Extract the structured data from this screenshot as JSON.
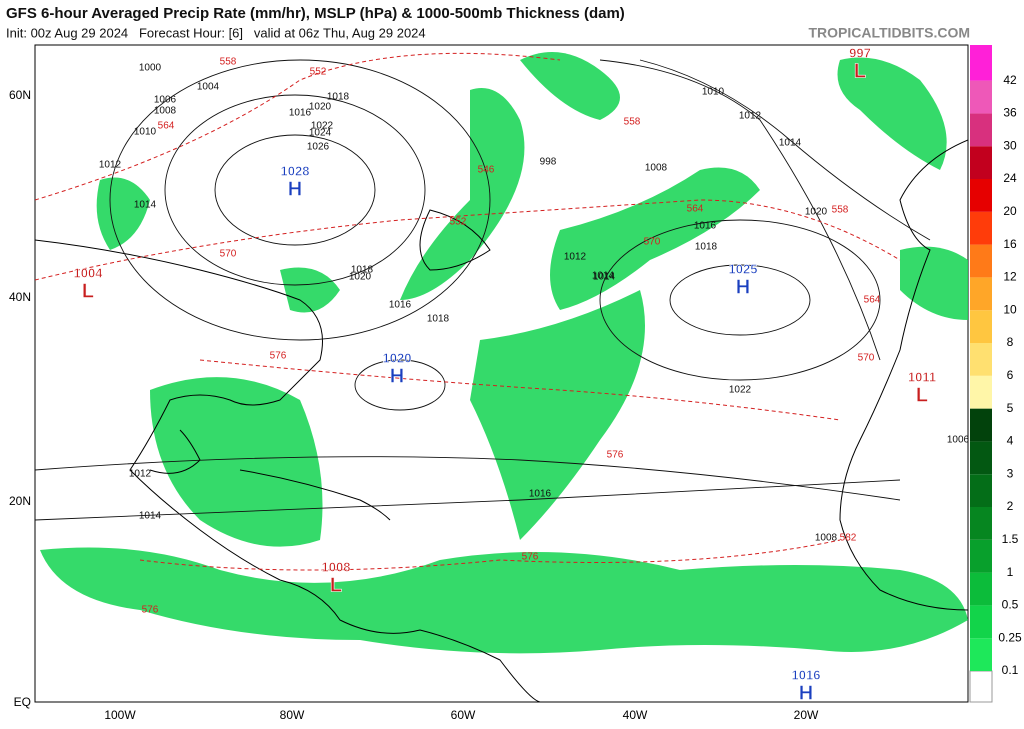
{
  "header": {
    "title": "GFS 6-hour Averaged Precip Rate (mm/hr), MSLP (hPa) & 1000-500mb Thickness (dam)",
    "subtitle": "Init: 00z Aug 29 2024   Forecast Hour: [6]   valid at 06z Thu, Aug 29 2024",
    "watermark": "TROPICALTIDBITS.COM"
  },
  "latitudes": [
    "60N",
    "40N",
    "20N",
    "EQ"
  ],
  "longitudes": [
    "100W",
    "80W",
    "60W",
    "40W",
    "20W"
  ],
  "centers": [
    {
      "type": "H",
      "pressure": 1028
    },
    {
      "type": "H",
      "pressure": 1020
    },
    {
      "type": "H",
      "pressure": 1025
    },
    {
      "type": "H",
      "pressure": 1016
    },
    {
      "type": "L",
      "pressure": 997
    },
    {
      "type": "L",
      "pressure": 1004
    },
    {
      "type": "L",
      "pressure": 1008
    },
    {
      "type": "L",
      "pressure": 1011
    }
  ],
  "isobar_labels": [
    "1000",
    "1004",
    "1006",
    "1008",
    "1010",
    "1012",
    "1014",
    "1016",
    "1018",
    "1020",
    "1022",
    "1024",
    "1026",
    "998",
    "1018",
    "1020",
    "1016",
    "1014",
    "1018",
    "1022",
    "1008",
    "1010",
    "1012",
    "1014",
    "1016",
    "1018",
    "1020",
    "1012",
    "1014",
    "1016",
    "1012",
    "1014",
    "1006",
    "1008"
  ],
  "thickness_labels": [
    "558",
    "552",
    "564",
    "570",
    "576",
    "546",
    "552",
    "558",
    "564",
    "570",
    "576",
    "582",
    "576",
    "576",
    "564",
    "570",
    "558"
  ],
  "colorbar": {
    "levels": [
      0.1,
      0.25,
      0.5,
      1,
      1.5,
      2,
      3,
      4,
      5,
      6,
      8,
      10,
      12,
      16,
      20,
      24,
      30,
      36,
      42
    ],
    "colors": [
      "#1ee85a",
      "#12d44a",
      "#0cbc3a",
      "#08a02c",
      "#068620",
      "#046e18",
      "#035812",
      "#02420c",
      "#fff6a8",
      "#ffe070",
      "#ffc640",
      "#ffa628",
      "#ff7a18",
      "#ff3c0a",
      "#e60000",
      "#c2001e",
      "#d8307e",
      "#ee58b8",
      "#ff20d8"
    ]
  }
}
